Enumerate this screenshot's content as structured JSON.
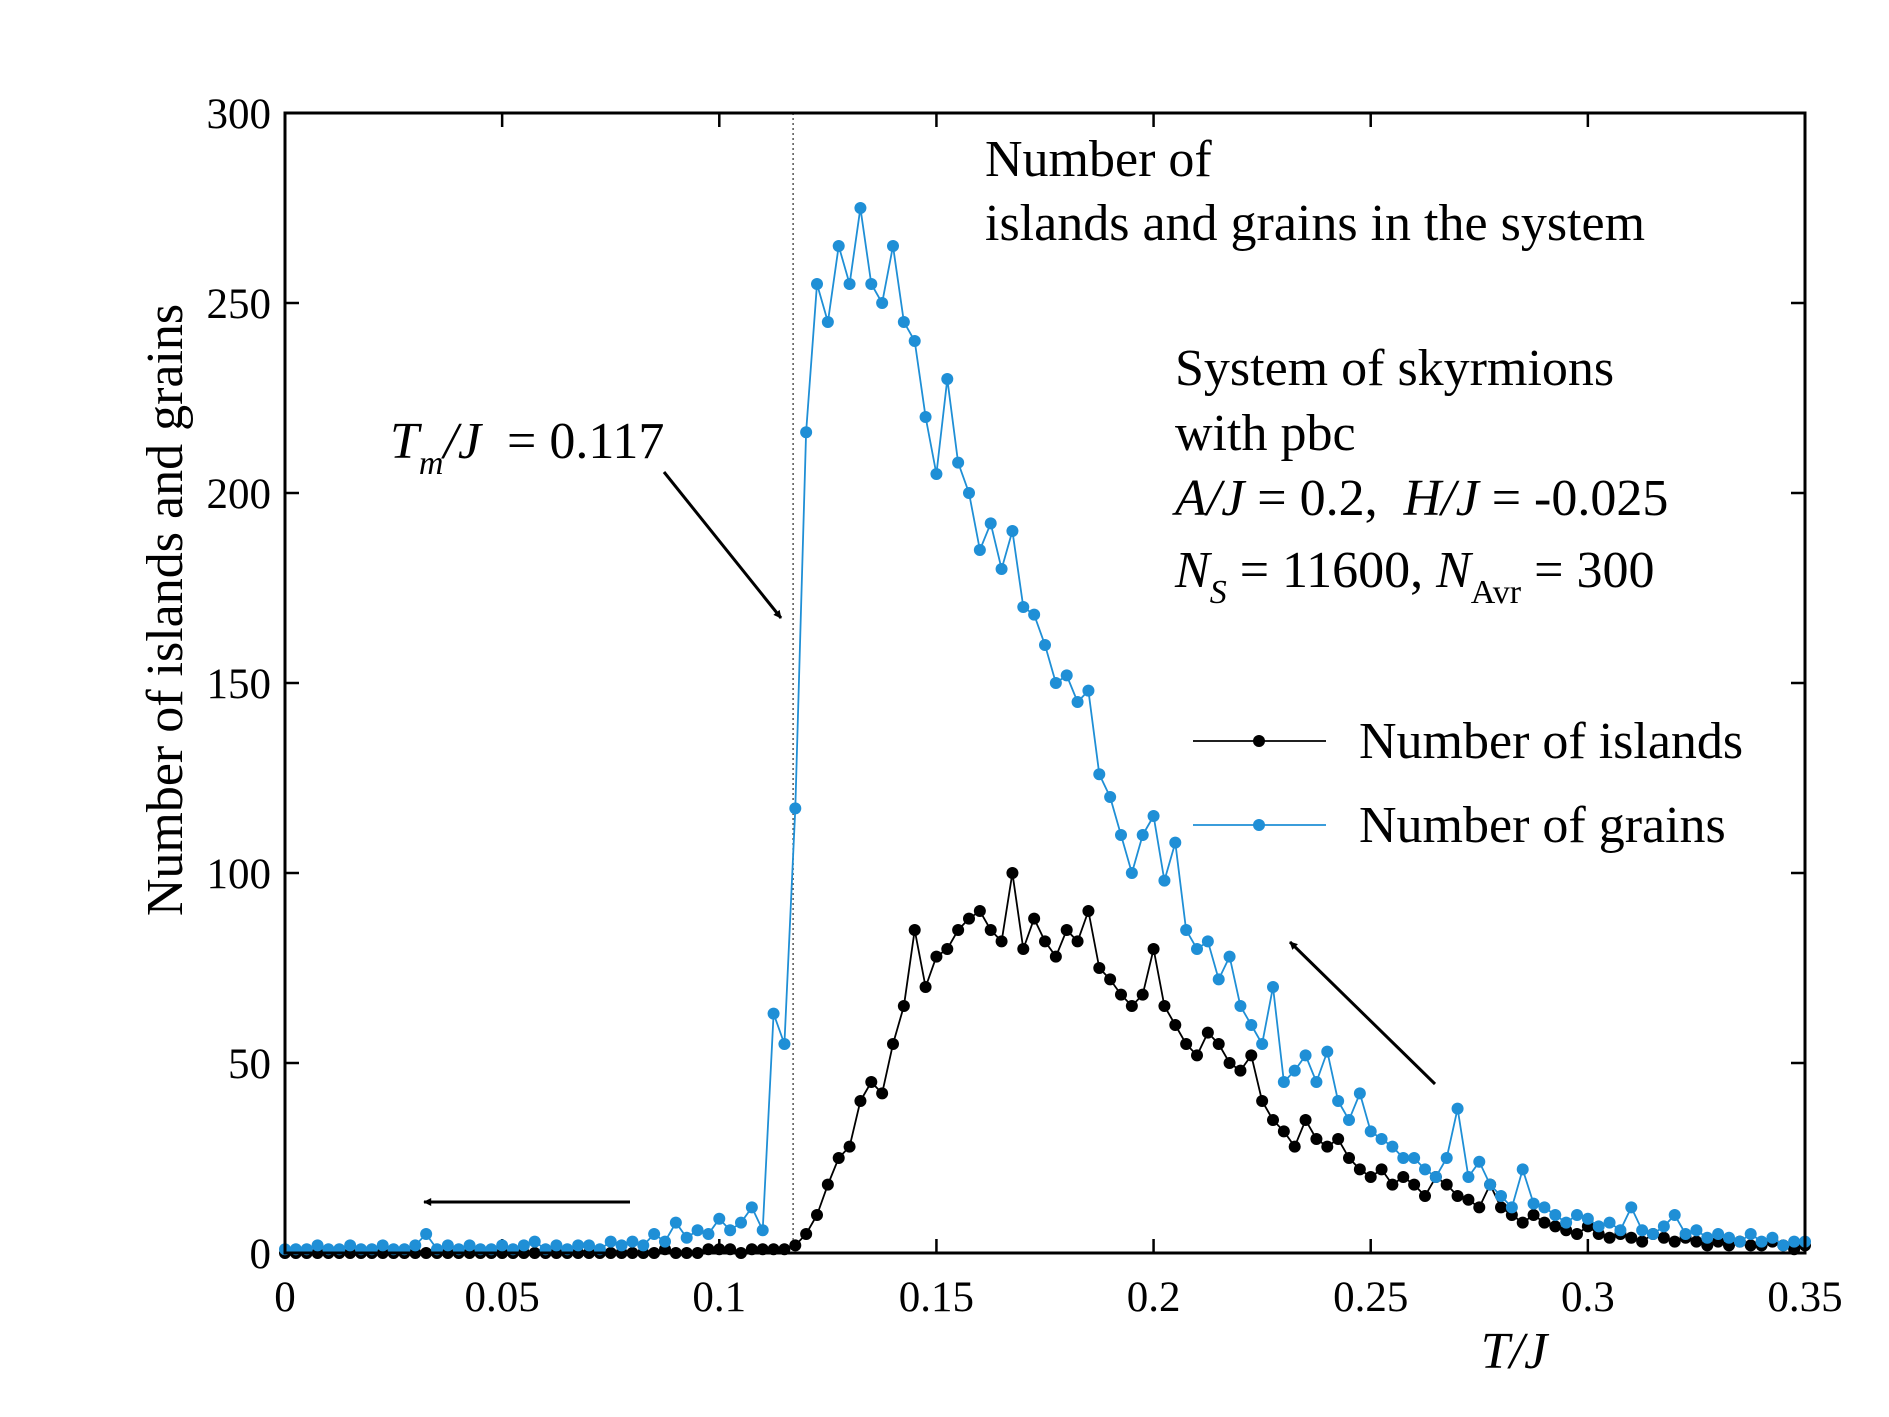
{
  "chart_data": {
    "type": "line",
    "x_label": "T/J",
    "y_label": "Number of islands and grains",
    "xlim": [
      0,
      0.35
    ],
    "ylim": [
      0,
      300
    ],
    "xticks": [
      0,
      0.05,
      0.1,
      0.15,
      0.2,
      0.25,
      0.3,
      0.35
    ],
    "yticks": [
      0,
      50,
      100,
      150,
      200,
      250,
      300
    ],
    "legend": "right",
    "tm": 0.117,
    "annotations": [
      {
        "parts": [
          {
            "text": "Number of"
          }
        ]
      },
      {
        "parts": [
          {
            "text": "islands and grains in the system"
          }
        ]
      },
      {
        "parts": [
          {
            "text": "System of skyrmions"
          }
        ]
      },
      {
        "parts": [
          {
            "text": "with pbc"
          }
        ]
      },
      {
        "parts": [
          {
            "text": "A/J",
            "style": "i"
          },
          {
            "text": " = 0.2,  "
          },
          {
            "text": "H/J",
            "style": "i"
          },
          {
            "text": " = -0.025"
          }
        ]
      },
      {
        "parts": [
          {
            "text": "N",
            "style": "i"
          },
          {
            "text": "S",
            "style": "sub"
          },
          {
            "text": " = 11600, "
          },
          {
            "text": "N",
            "style": "i"
          },
          {
            "text": "Avr",
            "style": "subr"
          },
          {
            "text": " = 300"
          }
        ]
      },
      {
        "parts": [
          {
            "text": "T",
            "style": "i"
          },
          {
            "text": "m",
            "style": "sub"
          },
          {
            "text": "/J",
            "style": "i"
          },
          {
            "text": "  = 0.117"
          }
        ]
      }
    ],
    "x": [
      0,
      0.0025,
      0.005,
      0.0075,
      0.01,
      0.0125,
      0.015,
      0.0175,
      0.02,
      0.0225,
      0.025,
      0.0275,
      0.03,
      0.0325,
      0.035,
      0.0375,
      0.04,
      0.0425,
      0.045,
      0.0475,
      0.05,
      0.0525,
      0.055,
      0.0575,
      0.06,
      0.0625,
      0.065,
      0.0675,
      0.07,
      0.0725,
      0.075,
      0.0775,
      0.08,
      0.0825,
      0.085,
      0.0875,
      0.09,
      0.0925,
      0.095,
      0.0975,
      0.1,
      0.1025,
      0.105,
      0.1075,
      0.11,
      0.1125,
      0.115,
      0.1175,
      0.12,
      0.1225,
      0.125,
      0.1275,
      0.13,
      0.1325,
      0.135,
      0.1375,
      0.14,
      0.1425,
      0.145,
      0.1475,
      0.15,
      0.1525,
      0.155,
      0.1575,
      0.16,
      0.1625,
      0.165,
      0.1675,
      0.17,
      0.1725,
      0.175,
      0.1775,
      0.18,
      0.1825,
      0.185,
      0.1875,
      0.19,
      0.1925,
      0.195,
      0.1975,
      0.2,
      0.2025,
      0.205,
      0.2075,
      0.21,
      0.2125,
      0.215,
      0.2175,
      0.22,
      0.2225,
      0.225,
      0.2275,
      0.23,
      0.2325,
      0.235,
      0.2375,
      0.24,
      0.2425,
      0.245,
      0.2475,
      0.25,
      0.2525,
      0.255,
      0.2575,
      0.26,
      0.2625,
      0.265,
      0.2675,
      0.27,
      0.2725,
      0.275,
      0.2775,
      0.28,
      0.2825,
      0.285,
      0.2875,
      0.29,
      0.2925,
      0.295,
      0.2975,
      0.3,
      0.3025,
      0.305,
      0.3075,
      0.31,
      0.3125,
      0.315,
      0.3175,
      0.32,
      0.3225,
      0.325,
      0.3275,
      0.33,
      0.3325,
      0.335,
      0.3375,
      0.34,
      0.3425,
      0.345,
      0.3475,
      0.35
    ],
    "series": [
      {
        "name": "Number of islands",
        "color": "#000000",
        "values": [
          0,
          0,
          0,
          0,
          0,
          0,
          0,
          0,
          0,
          0,
          0,
          0,
          0,
          0,
          0,
          0,
          0,
          0,
          0,
          0,
          0,
          0,
          0,
          0,
          0,
          0,
          0,
          0,
          0,
          0,
          0,
          0,
          0,
          0,
          0,
          1,
          0,
          0,
          0,
          1,
          1,
          1,
          0,
          1,
          1,
          1,
          1,
          2,
          5,
          10,
          18,
          25,
          28,
          40,
          45,
          42,
          55,
          65,
          85,
          70,
          78,
          80,
          85,
          88,
          90,
          85,
          82,
          100,
          80,
          88,
          82,
          78,
          85,
          82,
          90,
          75,
          72,
          68,
          65,
          68,
          80,
          65,
          60,
          55,
          52,
          58,
          55,
          50,
          48,
          52,
          40,
          35,
          32,
          28,
          35,
          30,
          28,
          30,
          25,
          22,
          20,
          22,
          18,
          20,
          18,
          15,
          20,
          18,
          15,
          14,
          12,
          18,
          12,
          10,
          8,
          10,
          8,
          7,
          6,
          5,
          7,
          5,
          4,
          5,
          4,
          3,
          5,
          4,
          3,
          4,
          3,
          2,
          3,
          2,
          3,
          2,
          2,
          3,
          2,
          1,
          2
        ]
      },
      {
        "name": "Number of grains",
        "color": "#1f8fd6",
        "values": [
          1,
          1,
          1,
          2,
          1,
          1,
          2,
          1,
          1,
          2,
          1,
          1,
          2,
          5,
          1,
          2,
          1,
          2,
          1,
          1,
          2,
          1,
          2,
          3,
          1,
          2,
          1,
          2,
          2,
          1,
          3,
          2,
          3,
          2,
          5,
          3,
          8,
          4,
          6,
          5,
          9,
          6,
          8,
          12,
          6,
          63,
          55,
          117,
          216,
          255,
          245,
          265,
          255,
          275,
          255,
          250,
          265,
          245,
          240,
          220,
          205,
          230,
          208,
          200,
          185,
          192,
          180,
          190,
          170,
          168,
          160,
          150,
          152,
          145,
          148,
          126,
          120,
          110,
          100,
          110,
          115,
          98,
          108,
          85,
          80,
          82,
          72,
          78,
          65,
          60,
          55,
          70,
          45,
          48,
          52,
          45,
          53,
          40,
          35,
          42,
          32,
          30,
          28,
          25,
          25,
          22,
          20,
          25,
          38,
          20,
          24,
          18,
          15,
          12,
          22,
          13,
          12,
          10,
          8,
          10,
          9,
          7,
          8,
          6,
          12,
          6,
          5,
          7,
          10,
          5,
          6,
          4,
          5,
          4,
          3,
          5,
          3,
          4,
          2,
          3,
          3
        ]
      }
    ]
  }
}
